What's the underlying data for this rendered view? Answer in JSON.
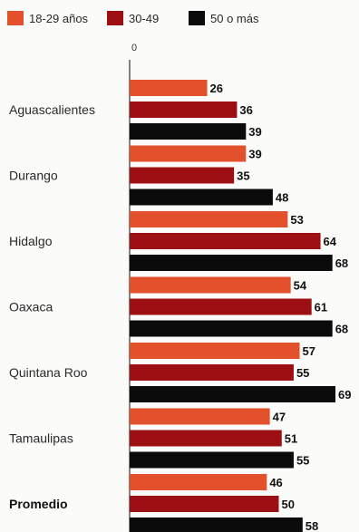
{
  "chart_data": {
    "type": "bar",
    "orientation": "horizontal",
    "categories": [
      "Aguascalientes",
      "Durango",
      "Hidalgo",
      "Oaxaca",
      "Quintana Roo",
      "Tamaulipas",
      "Promedio"
    ],
    "emphasized_category": "Promedio",
    "series": [
      {
        "name": "18-29 años",
        "color": "#e2502c",
        "values": [
          26,
          39,
          53,
          54,
          57,
          47,
          46
        ]
      },
      {
        "name": "30-49",
        "color": "#9c0f12",
        "values": [
          36,
          35,
          64,
          61,
          55,
          51,
          50
        ]
      },
      {
        "name": "50 o más",
        "color": "#0b0b0b",
        "values": [
          39,
          48,
          68,
          68,
          69,
          55,
          58
        ]
      }
    ],
    "xlim": [
      0,
      69
    ],
    "x_tick_labels": [
      "0"
    ],
    "legend_position": "top",
    "data_labels": true,
    "grid": false
  }
}
